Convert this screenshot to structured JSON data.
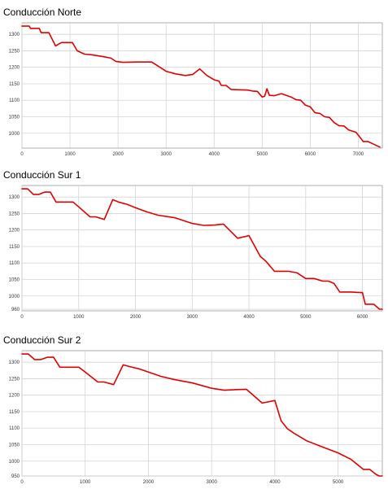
{
  "colors": {
    "series": "#e00000"
  },
  "chart_data": [
    {
      "type": "line",
      "title": "Conducción Norte",
      "xlim": [
        0,
        7500
      ],
      "ylim": [
        955,
        1335
      ],
      "xticks": [
        0,
        1000,
        2000,
        3000,
        4000,
        5000,
        6000,
        7000
      ],
      "yticks": [
        1000,
        1050,
        1100,
        1150,
        1200,
        1250,
        1300
      ],
      "grid": true,
      "series": [
        {
          "x": [
            0,
            150,
            180,
            360,
            400,
            560,
            700,
            820,
            1050,
            1150,
            1300,
            1450,
            1700,
            1850,
            1950,
            2100,
            2400,
            2700,
            3000,
            3200,
            3400,
            3550,
            3700,
            3850,
            4000,
            4100,
            4150,
            4250,
            4350,
            4500,
            4700,
            4800,
            4900,
            5000,
            5050,
            5100,
            5150,
            5250,
            5400,
            5600,
            5700,
            5800,
            5900,
            6000,
            6100,
            6200,
            6300,
            6400,
            6500,
            6600,
            6700,
            6800,
            6950,
            7050,
            7100,
            7200,
            7300,
            7450
          ],
          "y": [
            1325,
            1325,
            1318,
            1318,
            1305,
            1305,
            1265,
            1275,
            1275,
            1250,
            1240,
            1238,
            1232,
            1228,
            1218,
            1215,
            1216,
            1216,
            1188,
            1180,
            1175,
            1178,
            1195,
            1175,
            1162,
            1158,
            1145,
            1145,
            1133,
            1132,
            1131,
            1128,
            1127,
            1110,
            1112,
            1135,
            1115,
            1114,
            1120,
            1110,
            1102,
            1100,
            1085,
            1080,
            1062,
            1060,
            1050,
            1048,
            1032,
            1023,
            1022,
            1010,
            1003,
            985,
            975,
            975,
            968,
            958
          ]
        }
      ]
    },
    {
      "type": "line",
      "title": "Conducción Sur 1",
      "xlim": [
        0,
        6350
      ],
      "ylim": [
        955,
        1335
      ],
      "xticks": [
        0,
        1000,
        2000,
        3000,
        4000,
        5000,
        6000
      ],
      "yticks": [
        960,
        1000,
        1050,
        1100,
        1150,
        1200,
        1250,
        1300
      ],
      "grid": true,
      "series": [
        {
          "x": [
            0,
            100,
            200,
            300,
            400,
            500,
            600,
            700,
            900,
            1000,
            1200,
            1300,
            1450,
            1600,
            1700,
            1850,
            2000,
            2200,
            2400,
            2700,
            3000,
            3200,
            3400,
            3550,
            3800,
            4000,
            4200,
            4300,
            4450,
            4700,
            4850,
            5000,
            5150,
            5300,
            5400,
            5500,
            5600,
            5800,
            6000,
            6050,
            6200,
            6300,
            6350
          ],
          "y": [
            1325,
            1325,
            1308,
            1308,
            1315,
            1315,
            1285,
            1285,
            1285,
            1270,
            1240,
            1240,
            1232,
            1292,
            1285,
            1278,
            1268,
            1255,
            1245,
            1237,
            1220,
            1214,
            1215,
            1218,
            1175,
            1183,
            1120,
            1105,
            1075,
            1075,
            1070,
            1053,
            1053,
            1045,
            1045,
            1038,
            1012,
            1012,
            1010,
            975,
            975,
            960,
            960
          ]
        }
      ]
    },
    {
      "type": "line",
      "title": "Conducción Sur 2",
      "xlim": [
        0,
        5700
      ],
      "ylim": [
        955,
        1335
      ],
      "xticks": [
        0,
        1000,
        2000,
        3000,
        4000,
        5000
      ],
      "yticks": [
        950,
        1000,
        1050,
        1100,
        1150,
        1200,
        1250,
        1300
      ],
      "grid": true,
      "series": [
        {
          "x": [
            0,
            100,
            200,
            300,
            400,
            500,
            600,
            700,
            900,
            1000,
            1200,
            1300,
            1450,
            1600,
            1700,
            1850,
            2000,
            2200,
            2400,
            2700,
            3000,
            3200,
            3400,
            3550,
            3800,
            4000,
            4100,
            4200,
            4300,
            4500,
            4750,
            5000,
            5200,
            5400,
            5500,
            5600,
            5650,
            5700
          ],
          "y": [
            1325,
            1325,
            1308,
            1308,
            1315,
            1315,
            1285,
            1285,
            1285,
            1270,
            1240,
            1240,
            1232,
            1292,
            1287,
            1280,
            1270,
            1257,
            1248,
            1237,
            1221,
            1215,
            1217,
            1218,
            1176,
            1184,
            1122,
            1098,
            1085,
            1062,
            1043,
            1025,
            1006,
            975,
            975,
            960,
            953,
            953
          ]
        }
      ]
    }
  ]
}
